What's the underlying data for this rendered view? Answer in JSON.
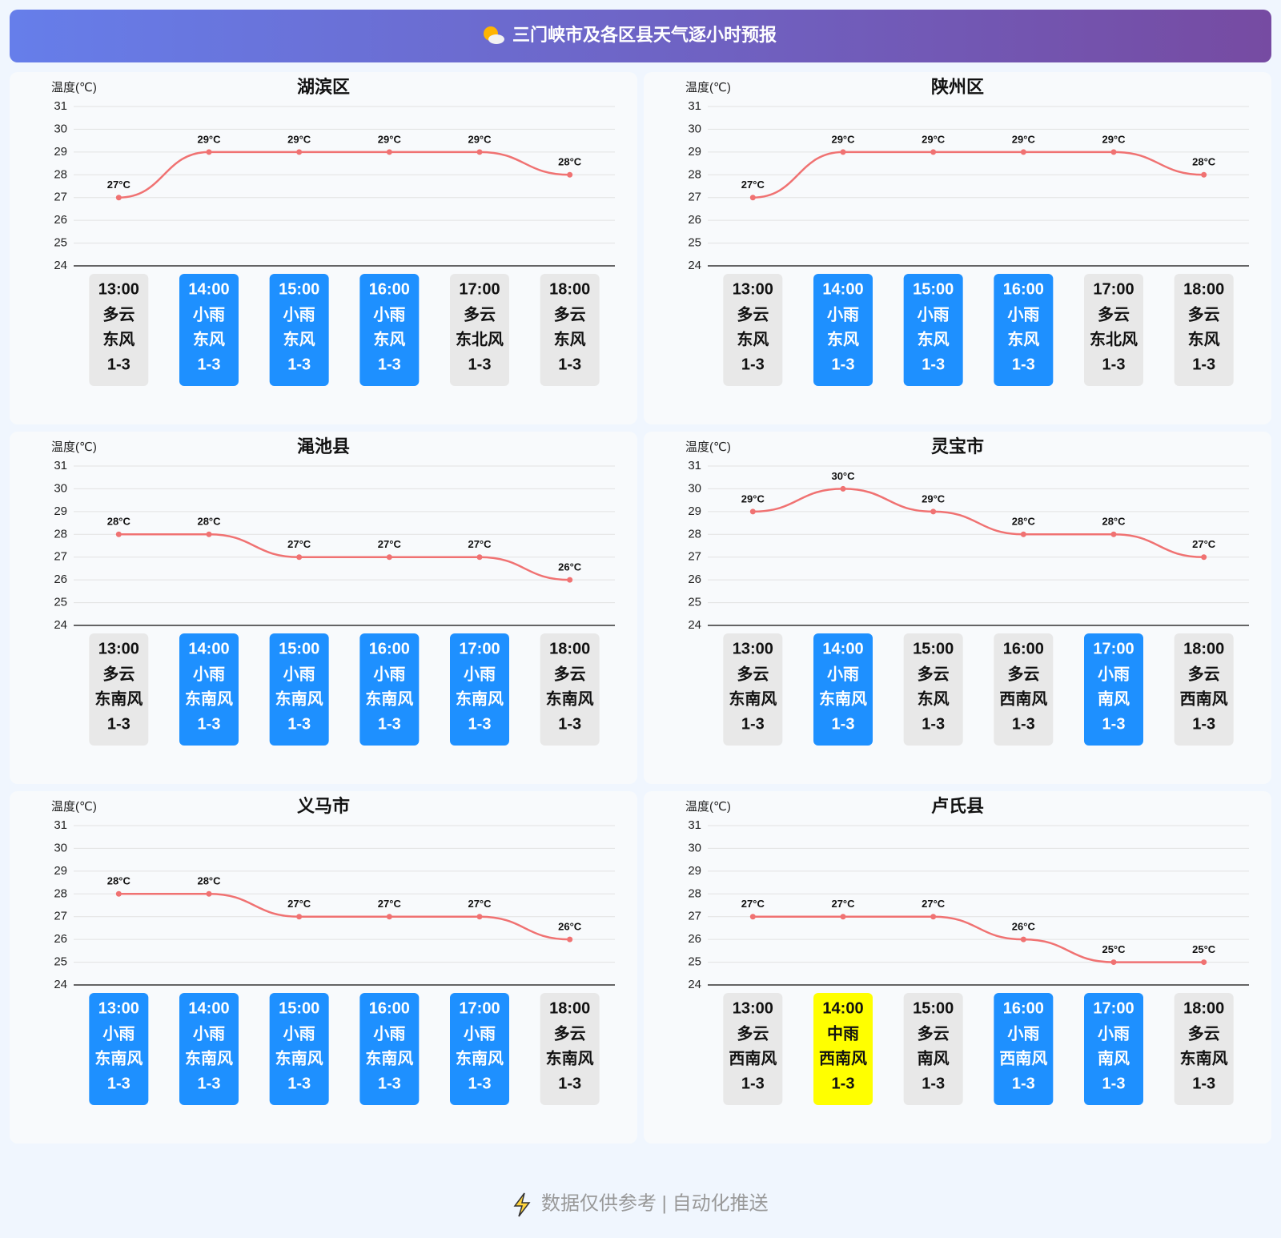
{
  "header": {
    "title": "三门峡市及各区县天气逐小时预报"
  },
  "chart_data": [
    {
      "type": "line",
      "title": "湖滨区",
      "ylabel": "温度(℃)",
      "categories": [
        "13:00",
        "14:00",
        "15:00",
        "16:00",
        "17:00",
        "18:00"
      ],
      "values": [
        27,
        29,
        29,
        29,
        29,
        28
      ],
      "value_labels": [
        "27°C",
        "29°C",
        "29°C",
        "29°C",
        "29°C",
        "28°C"
      ],
      "weather": [
        "多云",
        "小雨",
        "小雨",
        "小雨",
        "多云",
        "多云"
      ],
      "wind": [
        "东风",
        "东风",
        "东风",
        "东风",
        "东北风",
        "东风"
      ],
      "wind_level": [
        "1-3",
        "1-3",
        "1-3",
        "1-3",
        "1-3",
        "1-3"
      ],
      "box_colors": [
        "#e8e8e8",
        "#1e90ff",
        "#1e90ff",
        "#1e90ff",
        "#e8e8e8",
        "#e8e8e8"
      ],
      "color": "#f07272",
      "ylim": [
        24,
        31
      ],
      "yticks": [
        24,
        25,
        26,
        27,
        28,
        29,
        30,
        31
      ],
      "grid": true
    },
    {
      "type": "line",
      "title": "陕州区",
      "ylabel": "温度(℃)",
      "categories": [
        "13:00",
        "14:00",
        "15:00",
        "16:00",
        "17:00",
        "18:00"
      ],
      "values": [
        27,
        29,
        29,
        29,
        29,
        28
      ],
      "value_labels": [
        "27°C",
        "29°C",
        "29°C",
        "29°C",
        "29°C",
        "28°C"
      ],
      "weather": [
        "多云",
        "小雨",
        "小雨",
        "小雨",
        "多云",
        "多云"
      ],
      "wind": [
        "东风",
        "东风",
        "东风",
        "东风",
        "东北风",
        "东风"
      ],
      "wind_level": [
        "1-3",
        "1-3",
        "1-3",
        "1-3",
        "1-3",
        "1-3"
      ],
      "box_colors": [
        "#e8e8e8",
        "#1e90ff",
        "#1e90ff",
        "#1e90ff",
        "#e8e8e8",
        "#e8e8e8"
      ],
      "color": "#f07272",
      "ylim": [
        24,
        31
      ],
      "yticks": [
        24,
        25,
        26,
        27,
        28,
        29,
        30,
        31
      ],
      "grid": true
    },
    {
      "type": "line",
      "title": "渑池县",
      "ylabel": "温度(℃)",
      "categories": [
        "13:00",
        "14:00",
        "15:00",
        "16:00",
        "17:00",
        "18:00"
      ],
      "values": [
        28,
        28,
        27,
        27,
        27,
        26
      ],
      "value_labels": [
        "28°C",
        "28°C",
        "27°C",
        "27°C",
        "27°C",
        "26°C"
      ],
      "weather": [
        "多云",
        "小雨",
        "小雨",
        "小雨",
        "小雨",
        "多云"
      ],
      "wind": [
        "东南风",
        "东南风",
        "东南风",
        "东南风",
        "东南风",
        "东南风"
      ],
      "wind_level": [
        "1-3",
        "1-3",
        "1-3",
        "1-3",
        "1-3",
        "1-3"
      ],
      "box_colors": [
        "#e8e8e8",
        "#1e90ff",
        "#1e90ff",
        "#1e90ff",
        "#1e90ff",
        "#e8e8e8"
      ],
      "color": "#f07272",
      "ylim": [
        24,
        31
      ],
      "yticks": [
        24,
        25,
        26,
        27,
        28,
        29,
        30,
        31
      ],
      "grid": true
    },
    {
      "type": "line",
      "title": "灵宝市",
      "ylabel": "温度(℃)",
      "categories": [
        "13:00",
        "14:00",
        "15:00",
        "16:00",
        "17:00",
        "18:00"
      ],
      "values": [
        29,
        30,
        29,
        28,
        28,
        27
      ],
      "value_labels": [
        "29°C",
        "30°C",
        "29°C",
        "28°C",
        "28°C",
        "27°C"
      ],
      "weather": [
        "多云",
        "小雨",
        "多云",
        "多云",
        "小雨",
        "多云"
      ],
      "wind": [
        "东南风",
        "东南风",
        "东风",
        "西南风",
        "南风",
        "西南风"
      ],
      "wind_level": [
        "1-3",
        "1-3",
        "1-3",
        "1-3",
        "1-3",
        "1-3"
      ],
      "box_colors": [
        "#e8e8e8",
        "#1e90ff",
        "#e8e8e8",
        "#e8e8e8",
        "#1e90ff",
        "#e8e8e8"
      ],
      "color": "#f07272",
      "ylim": [
        24,
        31
      ],
      "yticks": [
        24,
        25,
        26,
        27,
        28,
        29,
        30,
        31
      ],
      "grid": true
    },
    {
      "type": "line",
      "title": "义马市",
      "ylabel": "温度(℃)",
      "categories": [
        "13:00",
        "14:00",
        "15:00",
        "16:00",
        "17:00",
        "18:00"
      ],
      "values": [
        28,
        28,
        27,
        27,
        27,
        26
      ],
      "value_labels": [
        "28°C",
        "28°C",
        "27°C",
        "27°C",
        "27°C",
        "26°C"
      ],
      "weather": [
        "小雨",
        "小雨",
        "小雨",
        "小雨",
        "小雨",
        "多云"
      ],
      "wind": [
        "东南风",
        "东南风",
        "东南风",
        "东南风",
        "东南风",
        "东南风"
      ],
      "wind_level": [
        "1-3",
        "1-3",
        "1-3",
        "1-3",
        "1-3",
        "1-3"
      ],
      "box_colors": [
        "#1e90ff",
        "#1e90ff",
        "#1e90ff",
        "#1e90ff",
        "#1e90ff",
        "#e8e8e8"
      ],
      "color": "#f07272",
      "ylim": [
        24,
        31
      ],
      "yticks": [
        24,
        25,
        26,
        27,
        28,
        29,
        30,
        31
      ],
      "grid": true
    },
    {
      "type": "line",
      "title": "卢氏县",
      "ylabel": "温度(℃)",
      "categories": [
        "13:00",
        "14:00",
        "15:00",
        "16:00",
        "17:00",
        "18:00"
      ],
      "values": [
        27,
        27,
        27,
        26,
        25,
        25
      ],
      "value_labels": [
        "27°C",
        "27°C",
        "27°C",
        "26°C",
        "25°C",
        "25°C"
      ],
      "weather": [
        "多云",
        "中雨",
        "多云",
        "小雨",
        "小雨",
        "多云"
      ],
      "wind": [
        "西南风",
        "西南风",
        "南风",
        "西南风",
        "南风",
        "东南风"
      ],
      "wind_level": [
        "1-3",
        "1-3",
        "1-3",
        "1-3",
        "1-3",
        "1-3"
      ],
      "box_colors": [
        "#e8e8e8",
        "#ffff00",
        "#e8e8e8",
        "#1e90ff",
        "#1e90ff",
        "#e8e8e8"
      ],
      "color": "#f07272",
      "ylim": [
        24,
        31
      ],
      "yticks": [
        24,
        25,
        26,
        27,
        28,
        29,
        30,
        31
      ],
      "grid": true
    }
  ],
  "footer": {
    "text": "数据仅供参考 | 自动化推送"
  }
}
